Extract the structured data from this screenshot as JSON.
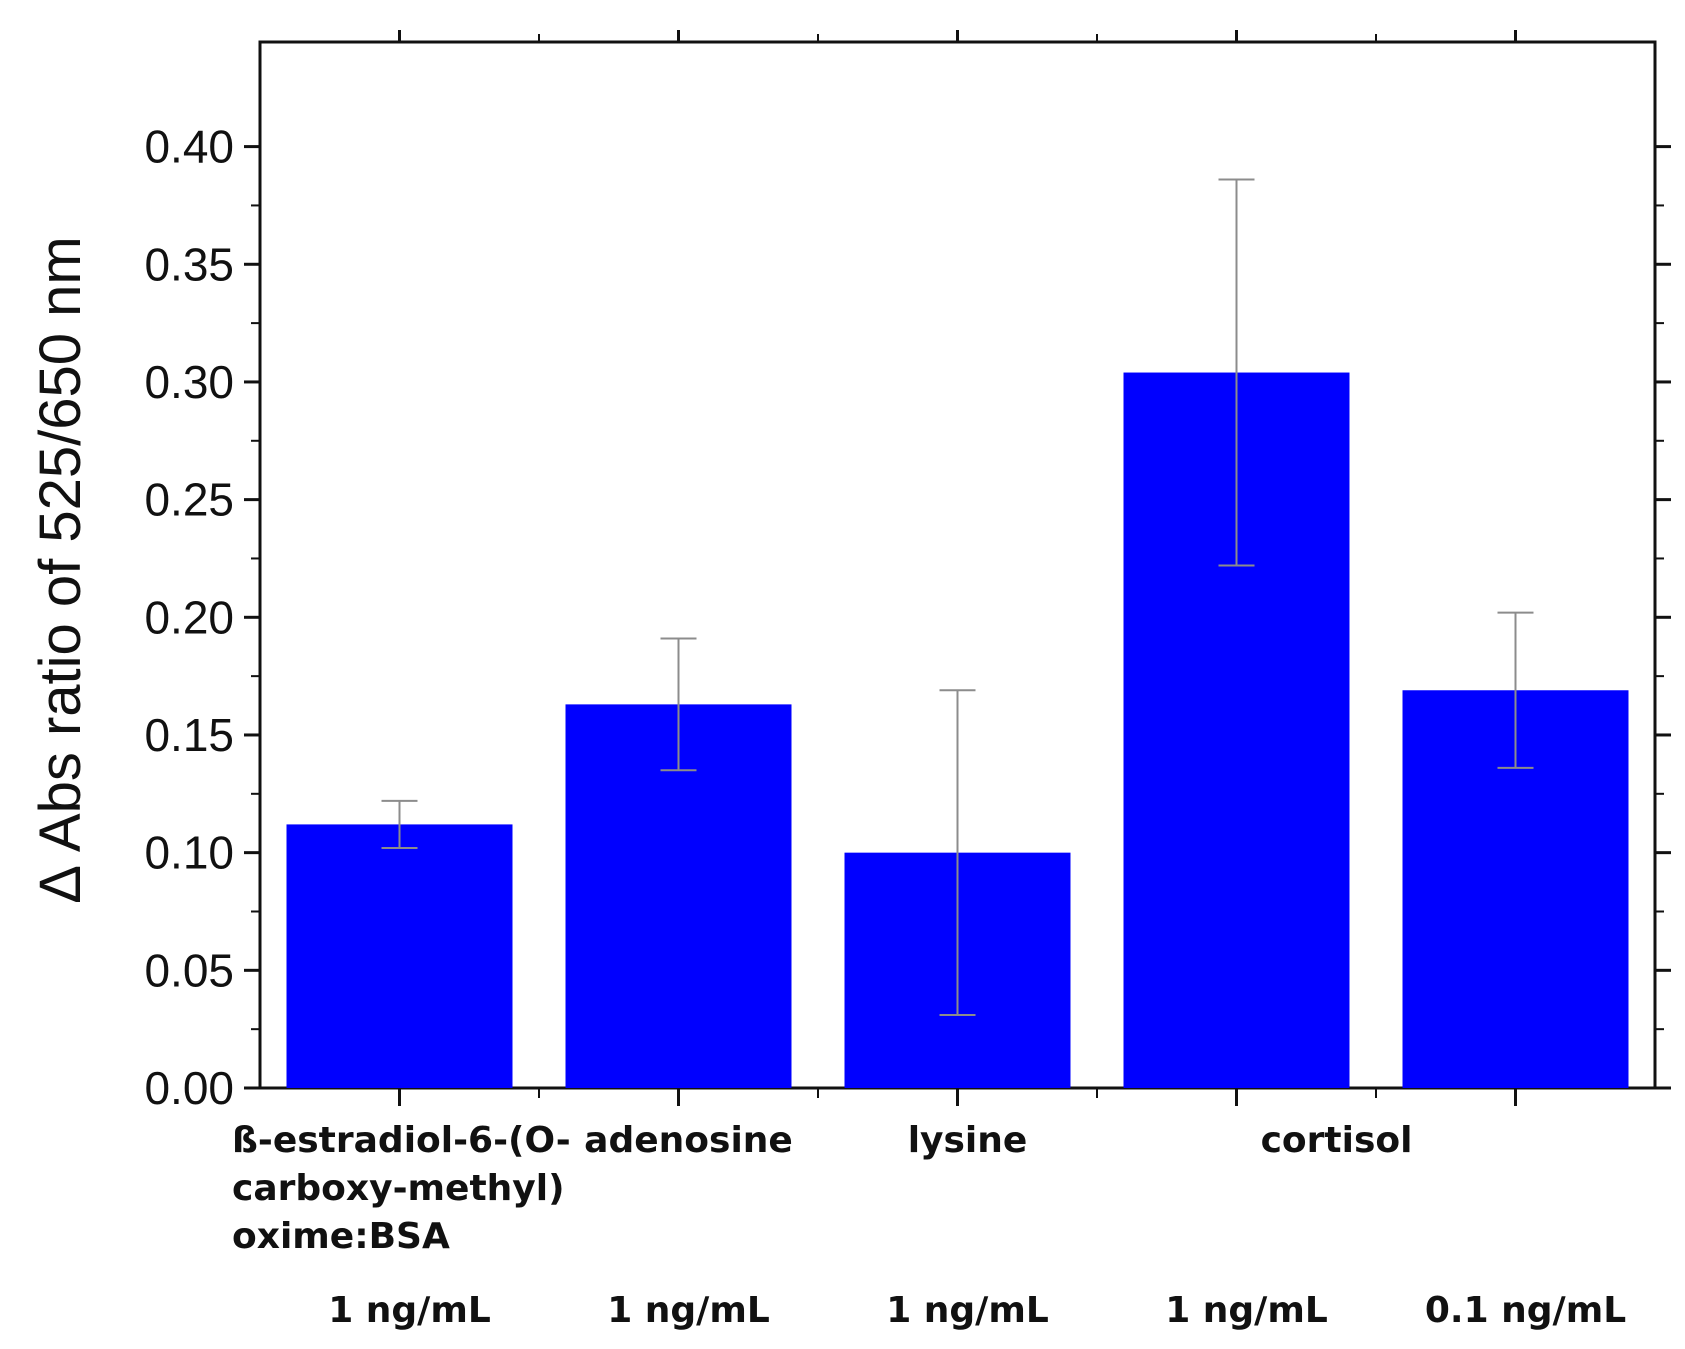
{
  "chart_data": {
    "type": "bar",
    "ylabel": "Δ Abs ratio of 525/650 nm",
    "ylim": [
      0,
      0.4
    ],
    "yticks": [
      "0.00",
      "0.05",
      "0.10",
      "0.15",
      "0.20",
      "0.25",
      "0.30",
      "0.35",
      "0.40"
    ],
    "grid": false,
    "bar_color": "#0000ff",
    "errorbar_color": "#8c8c8c",
    "category_names": [
      [
        "ß-estradiol-6-(O-",
        "carboxy-methyl)",
        "oxime:BSA"
      ],
      [
        "adenosine"
      ],
      [
        "lysine"
      ],
      [
        "cortisol"
      ],
      []
    ],
    "concentrations": [
      "1 ng/mL",
      "1 ng/mL",
      "1 ng/mL",
      "1 ng/mL",
      "0.1 ng/mL"
    ],
    "values": [
      0.112,
      0.163,
      0.1,
      0.304,
      0.169
    ],
    "errors": [
      0.01,
      0.028,
      0.069,
      0.082,
      0.033
    ]
  }
}
